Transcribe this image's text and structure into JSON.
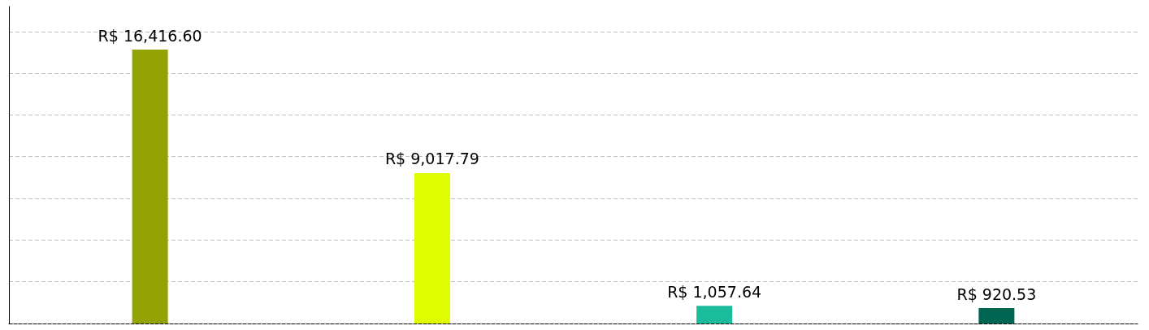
{
  "chart_data": {
    "type": "bar",
    "categories": [
      null,
      null,
      null,
      null
    ],
    "values": [
      16416.6,
      9017.79,
      1057.64,
      920.53
    ],
    "colors": [
      "#93a303",
      "#dffc00",
      "#1abc9c",
      "#006652"
    ],
    "value_labels": [
      "R$ 16,416.60",
      "R$ 9,017.79",
      "R$ 1,057.64",
      "R$ 920.53"
    ],
    "ylim": [
      0,
      19000
    ],
    "yticks": [
      {
        "value": 0,
        "label": null
      },
      {
        "value": 2500,
        "label": null
      },
      {
        "value": 5000,
        "label": null
      },
      {
        "value": 7500,
        "label": null
      },
      {
        "value": 10000,
        "label": null
      },
      {
        "value": 12500,
        "label": null
      },
      {
        "value": 15000,
        "label": null
      },
      {
        "value": 17500,
        "label": null
      }
    ],
    "grid": "y"
  }
}
